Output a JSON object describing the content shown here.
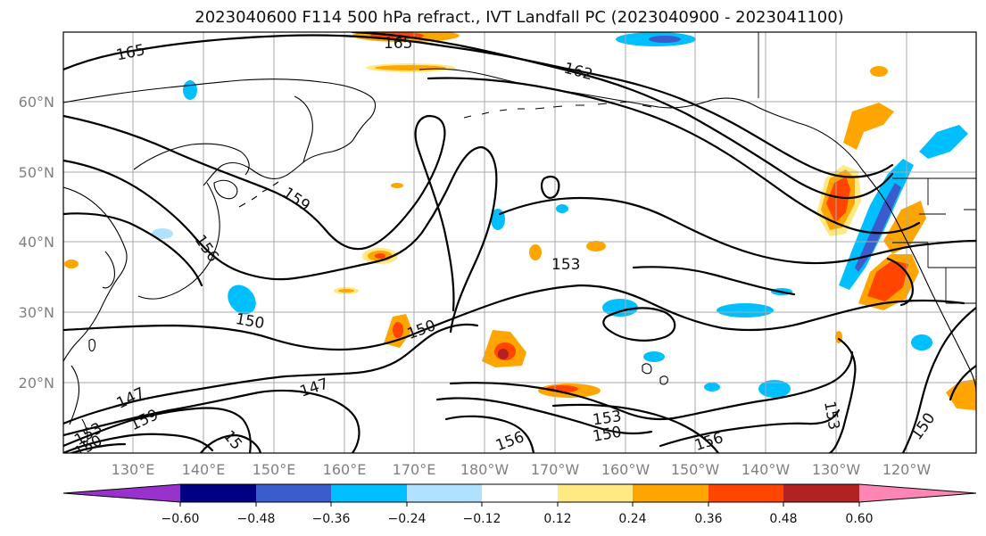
{
  "title": "2023040600 F114 500 hPa refract., IVT Landfall PC (2023040900 - 2023041100)",
  "lat_labels": [
    "60°N",
    "50°N",
    "40°N",
    "30°N",
    "20°N"
  ],
  "lon_labels": [
    "130°E",
    "140°E",
    "150°E",
    "160°E",
    "170°E",
    "180°W",
    "170°W",
    "160°W",
    "150°W",
    "140°W",
    "130°W",
    "120°W"
  ],
  "colorbar": {
    "ticks": [
      "−0.60",
      "−0.48",
      "−0.36",
      "−0.24",
      "−0.12",
      "0.12",
      "0.24",
      "0.36",
      "0.48",
      "0.60"
    ],
    "colors": [
      "#9932cc",
      "#000080",
      "#3a5ccc",
      "#00bfff",
      "#b0e2ff",
      "#ffffff",
      "#ffe983",
      "#ffa500",
      "#ff4500",
      "#b22222",
      "#ff86b4"
    ]
  },
  "contour_labels": [
    {
      "text": "165"
    },
    {
      "text": "165"
    },
    {
      "text": "162"
    },
    {
      "text": "159"
    },
    {
      "text": "156"
    },
    {
      "text": "153"
    },
    {
      "text": "150"
    },
    {
      "text": "150"
    },
    {
      "text": "147"
    },
    {
      "text": "147"
    },
    {
      "text": "159"
    },
    {
      "text": "153"
    },
    {
      "text": "150"
    },
    {
      "text": "156"
    },
    {
      "text": "156"
    },
    {
      "text": "153"
    },
    {
      "text": "150"
    },
    {
      "text": "153"
    },
    {
      "text": "150"
    },
    {
      "text": "15"
    }
  ]
}
